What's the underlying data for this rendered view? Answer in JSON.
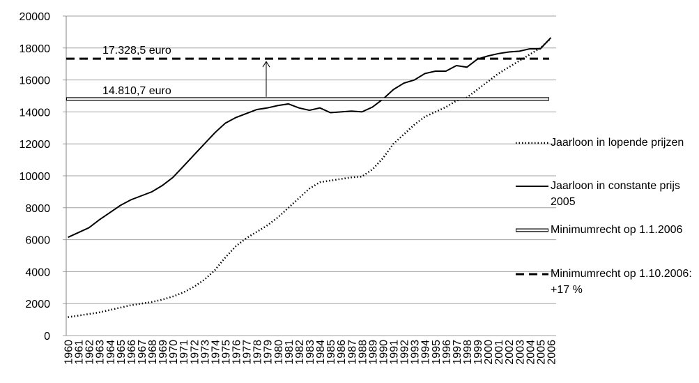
{
  "chart_data": {
    "type": "line",
    "categories": [
      "1960",
      "1961",
      "1962",
      "1963",
      "1964",
      "1965",
      "1966",
      "1967",
      "1968",
      "1969",
      "1970",
      "1971",
      "1972",
      "1973",
      "1974",
      "1975",
      "1976",
      "1977",
      "1978",
      "1979",
      "1980",
      "1981",
      "1982",
      "1983",
      "1984",
      "1985",
      "1986",
      "1987",
      "1988",
      "1989",
      "1990",
      "1991",
      "1992",
      "1993",
      "1994",
      "1995",
      "1996",
      "1997",
      "1998",
      "1999",
      "2000",
      "2001",
      "2002",
      "2003",
      "2004",
      "2005",
      "2006"
    ],
    "series": [
      {
        "name": "Jaarloon in lopende prijzen",
        "color": "#000000",
        "style": "dotted",
        "values": [
          1150,
          1250,
          1350,
          1450,
          1600,
          1750,
          1900,
          2000,
          2100,
          2250,
          2450,
          2700,
          3050,
          3500,
          4100,
          4900,
          5600,
          6100,
          6500,
          6900,
          7400,
          8000,
          8600,
          9200,
          9600,
          9700,
          9800,
          9900,
          9950,
          10400,
          11100,
          12000,
          12600,
          13200,
          13700,
          14000,
          14300,
          14700,
          14900,
          15400,
          15900,
          16400,
          16800,
          17200,
          17600,
          18000,
          18600
        ]
      },
      {
        "name": "Jaarloon in constante prijs 2005",
        "color": "#000000",
        "style": "solid",
        "values": [
          6150,
          6450,
          6750,
          7250,
          7700,
          8150,
          8500,
          8750,
          9000,
          9400,
          9900,
          10600,
          11300,
          12000,
          12700,
          13300,
          13650,
          13900,
          14150,
          14250,
          14400,
          14500,
          14250,
          14100,
          14250,
          13950,
          14000,
          14050,
          14000,
          14300,
          14800,
          15400,
          15800,
          16000,
          16400,
          16550,
          16550,
          16900,
          16800,
          17300,
          17500,
          17650,
          17750,
          17800,
          17950,
          17950,
          18650
        ]
      },
      {
        "name": "Minimumrecht op 1.1.2006",
        "color": "#000000",
        "style": "double",
        "value": 14810.7,
        "label": "14.810,7 euro"
      },
      {
        "name": "Minimumrecht op 1.10.2006: +17 %",
        "color": "#000000",
        "style": "dashed",
        "value": 17328.5,
        "label": "17.328,5 euro"
      }
    ],
    "ylim": [
      0,
      20000
    ],
    "yticks": [
      0,
      2000,
      4000,
      6000,
      8000,
      10000,
      12000,
      14000,
      16000,
      18000,
      20000
    ],
    "grid": true,
    "legend": "right"
  }
}
